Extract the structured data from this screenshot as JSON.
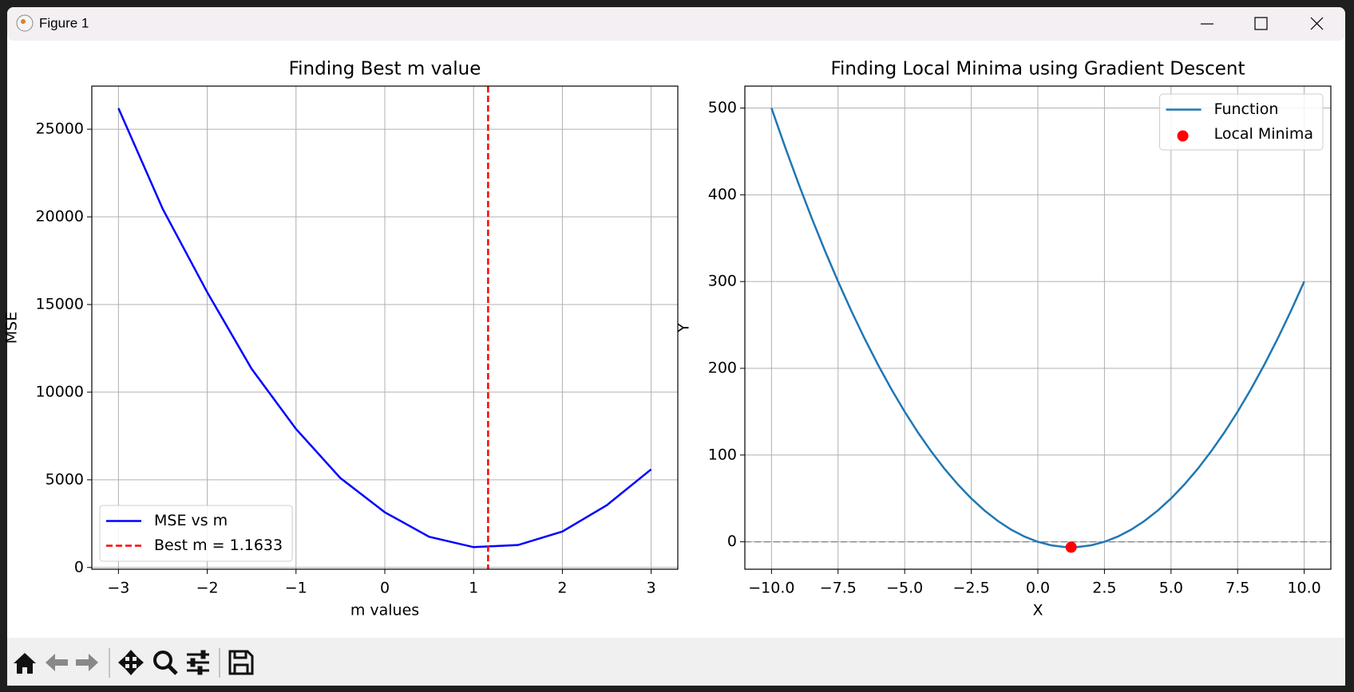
{
  "window": {
    "title": "Figure 1"
  },
  "chart_data": [
    {
      "type": "line",
      "title": "Finding Best m value",
      "xlabel": "m values",
      "ylabel": "MSE",
      "xlim": [
        -3.3,
        3.3
      ],
      "ylim": [
        -100,
        27460
      ],
      "xticks": [
        {
          "value": -3,
          "label": "−3"
        },
        {
          "value": -2,
          "label": "−2"
        },
        {
          "value": -1,
          "label": "−1"
        },
        0,
        1,
        2,
        3
      ],
      "yticks": [
        0,
        5000,
        10000,
        15000,
        20000,
        25000
      ],
      "grid": true,
      "legend": "lower left",
      "series": [
        {
          "name": "MSE vs m",
          "color": "#0000ff",
          "kind": "line",
          "x": [
            -3,
            -2.5,
            -2,
            -1.5,
            -1,
            -0.5,
            0,
            0.5,
            1,
            1.5,
            2,
            2.5,
            3
          ],
          "values": [
            26200,
            20440,
            15700,
            11330,
            7900,
            5100,
            3150,
            1750,
            1160,
            1280,
            2050,
            3550,
            5600
          ]
        }
      ],
      "vlines": [
        {
          "name": "Best m = 1.1633",
          "color": "#ff0000",
          "x": 1.1633,
          "style": "dashed"
        }
      ]
    },
    {
      "type": "line",
      "title": "Finding Local Minima using Gradient Descent",
      "xlabel": "X",
      "ylabel": "Y",
      "xlim": [
        -11,
        11
      ],
      "ylim": [
        -31.6,
        525.3
      ],
      "xticks": [
        {
          "value": -10,
          "label": "−10.0"
        },
        {
          "value": -7.5,
          "label": "−7.5"
        },
        {
          "value": -5,
          "label": "−5.0"
        },
        {
          "value": -2.5,
          "label": "−2.5"
        },
        {
          "value": 0,
          "label": "0.0"
        },
        2.5,
        {
          "value": 5,
          "label": "5.0"
        },
        7.5,
        {
          "value": 10,
          "label": "10.0"
        }
      ],
      "yticks": [
        0,
        100,
        200,
        300,
        400,
        500
      ],
      "grid": true,
      "legend": "upper right",
      "series": [
        {
          "name": "Function",
          "color": "#1f77b4",
          "kind": "line",
          "x": [
            -10,
            -9.5,
            -9,
            -8.5,
            -8,
            -7.5,
            -7,
            -6.5,
            -6,
            -5.5,
            -5,
            -4.5,
            -4,
            -3.5,
            -3,
            -2.5,
            -2,
            -1.5,
            -1,
            -0.5,
            0,
            0.5,
            1,
            1.5,
            2,
            2.5,
            3,
            3.5,
            4,
            4.5,
            5,
            5.5,
            6,
            6.5,
            7,
            7.5,
            8,
            8.5,
            9,
            9.5,
            10
          ],
          "values": [
            500,
            456,
            414,
            374,
            336,
            300,
            266,
            234,
            204,
            176,
            150,
            126,
            104,
            84,
            66,
            50,
            36,
            24,
            14,
            6,
            0,
            -4,
            -6,
            -6,
            -4,
            0,
            6,
            14,
            24,
            36,
            50,
            66,
            84,
            104,
            126,
            150,
            176,
            204,
            234,
            266,
            300
          ]
        },
        {
          "name": "Local Minima",
          "color": "#ff0000",
          "kind": "scatter",
          "x": [
            1.25
          ],
          "values": [
            -6.25
          ]
        }
      ],
      "hlines": [
        {
          "color": "#808080",
          "y": 0,
          "style": "dashed"
        }
      ]
    }
  ]
}
